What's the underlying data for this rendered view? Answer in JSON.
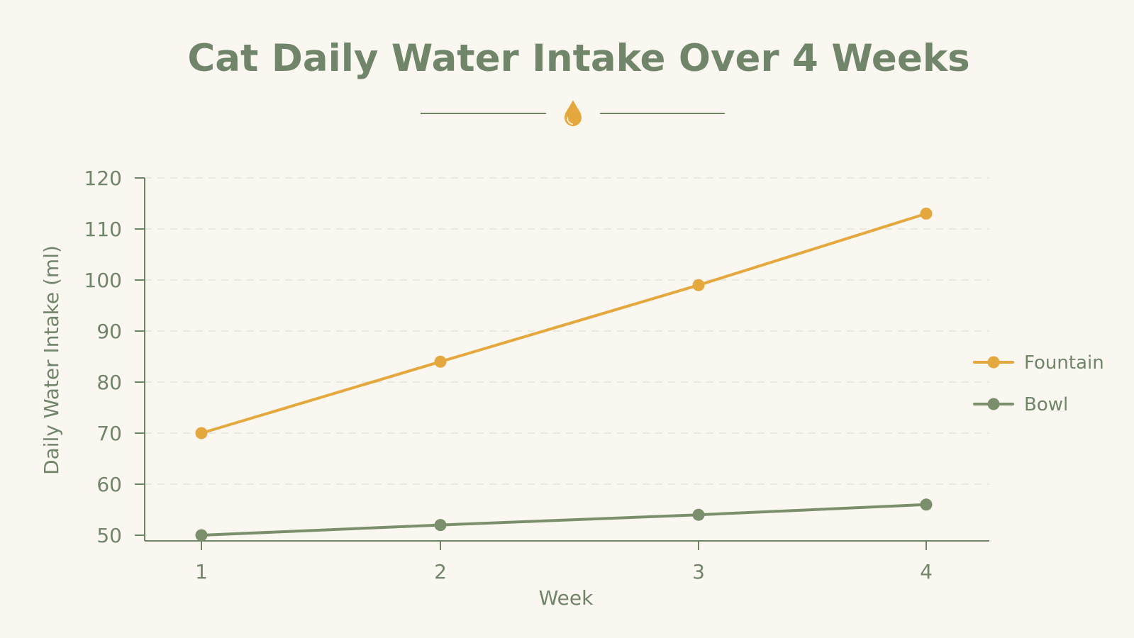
{
  "chart_data": {
    "type": "line",
    "title": "Cat Daily Water Intake Over 4 Weeks",
    "xlabel": "Week",
    "ylabel": "Daily Water Intake (ml)",
    "categories": [
      "1",
      "2",
      "3",
      "4"
    ],
    "ylim": [
      50,
      120
    ],
    "yticks": [
      50,
      60,
      70,
      80,
      90,
      100,
      110,
      120
    ],
    "grid": true,
    "legend_position": "right",
    "series": [
      {
        "name": "Fountain",
        "values": [
          70,
          84,
          99,
          113
        ],
        "color": "#e5a83f"
      },
      {
        "name": "Bowl",
        "values": [
          50,
          52,
          54,
          56
        ],
        "color": "#7b8f6c"
      }
    ]
  },
  "colors": {
    "background": "#f9f7ef",
    "text": "#71856a",
    "axis": "#6f8467",
    "grid": "#e6e2d6",
    "accent": "#e5a83f"
  },
  "decoration": {
    "divider_icon": "water-drop-icon"
  }
}
